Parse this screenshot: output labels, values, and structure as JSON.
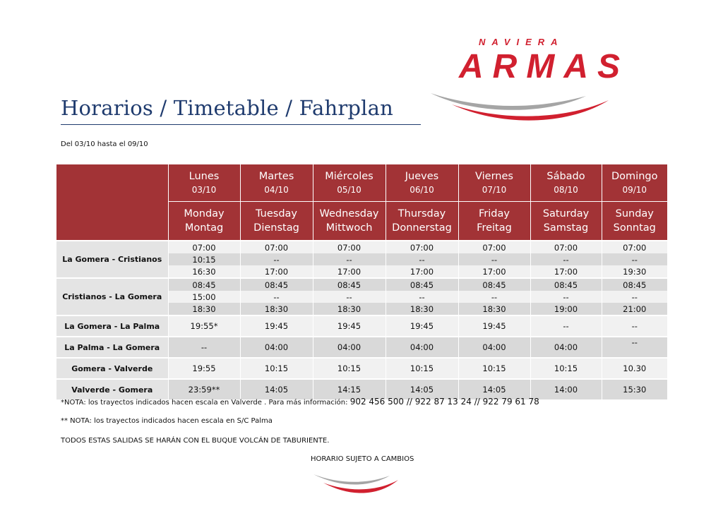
{
  "brand": {
    "small": "NAVIERA",
    "big": "ARMAS",
    "red": "#d1202f",
    "gray": "#9d9d9d"
  },
  "title": "Horarios / Timetable / Fahrplan",
  "date_range": "Del  03/10 hasta el 09/10",
  "days": [
    {
      "es": "Lunes",
      "date": "03/10",
      "en": "Monday",
      "de": "Montag"
    },
    {
      "es": "Martes",
      "date": "04/10",
      "en": "Tuesday",
      "de": "Dienstag"
    },
    {
      "es": "Miércoles",
      "date": "05/10",
      "en": "Wednesday",
      "de": "Mittwoch"
    },
    {
      "es": "Jueves",
      "date": "06/10",
      "en": "Thursday",
      "de": "Donnerstag"
    },
    {
      "es": "Viernes",
      "date": "07/10",
      "en": "Friday",
      "de": "Freitag"
    },
    {
      "es": "Sábado",
      "date": "08/10",
      "en": "Saturday",
      "de": "Samstag"
    },
    {
      "es": "Domingo",
      "date": "09/10",
      "en": "Sunday",
      "de": "Sonntag"
    }
  ],
  "routes": [
    {
      "name": "La Gomera - Cristianos",
      "rows": [
        [
          "07:00",
          "07:00",
          "07:00",
          "07:00",
          "07:00",
          "07:00",
          "07:00"
        ],
        [
          "10:15",
          "--",
          "--",
          "--",
          "--",
          "--",
          "--"
        ],
        [
          "16:30",
          "17:00",
          "17:00",
          "17:00",
          "17:00",
          "17:00",
          "19:30"
        ]
      ]
    },
    {
      "name": "Cristianos - La Gomera",
      "rows": [
        [
          "08:45",
          "08:45",
          "08:45",
          "08:45",
          "08:45",
          "08:45",
          "08:45"
        ],
        [
          "15:00",
          "--",
          "--",
          "--",
          "--",
          "--",
          "--"
        ],
        [
          "18:30",
          "18:30",
          "18:30",
          "18:30",
          "18:30",
          "19:00",
          "21:00"
        ]
      ]
    },
    {
      "name": "La Gomera - La Palma",
      "rows": [
        [
          "19:55*",
          "19:45",
          "19:45",
          "19:45",
          "19:45",
          "--",
          "--"
        ]
      ]
    },
    {
      "name": "La Palma - La Gomera",
      "rows": [
        [
          "--",
          "04:00",
          "04:00",
          "04:00",
          "04:00",
          "04:00",
          "--"
        ]
      ]
    },
    {
      "name": "Gomera - Valverde",
      "rows": [
        [
          "19:55",
          "10:15",
          "10:15",
          "10:15",
          "10:15",
          "10:15",
          "10.30"
        ]
      ]
    },
    {
      "name": "Valverde - Gomera",
      "rows": [
        [
          "23:59**",
          "14:05",
          "14:15",
          "14:05",
          "14:05",
          "14:00",
          "15:30"
        ]
      ]
    }
  ],
  "notes": {
    "note1_a": "*NOTA: los trayectos indicados hacen escala en Valverde . Para más información: ",
    "note1_b": "902 456 500 // 922 87 13 24 // 922 79 61 78",
    "note2": "** NOTA: los trayectos indicados hacen escala en S/C Palma",
    "note3": "TODOS ESTAS SALIDAS SE HARÁN CON EL BUQUE VOLCÁN DE TABURIENTE.",
    "note4": "HORARIO SUJETO A CAMBIOS"
  }
}
